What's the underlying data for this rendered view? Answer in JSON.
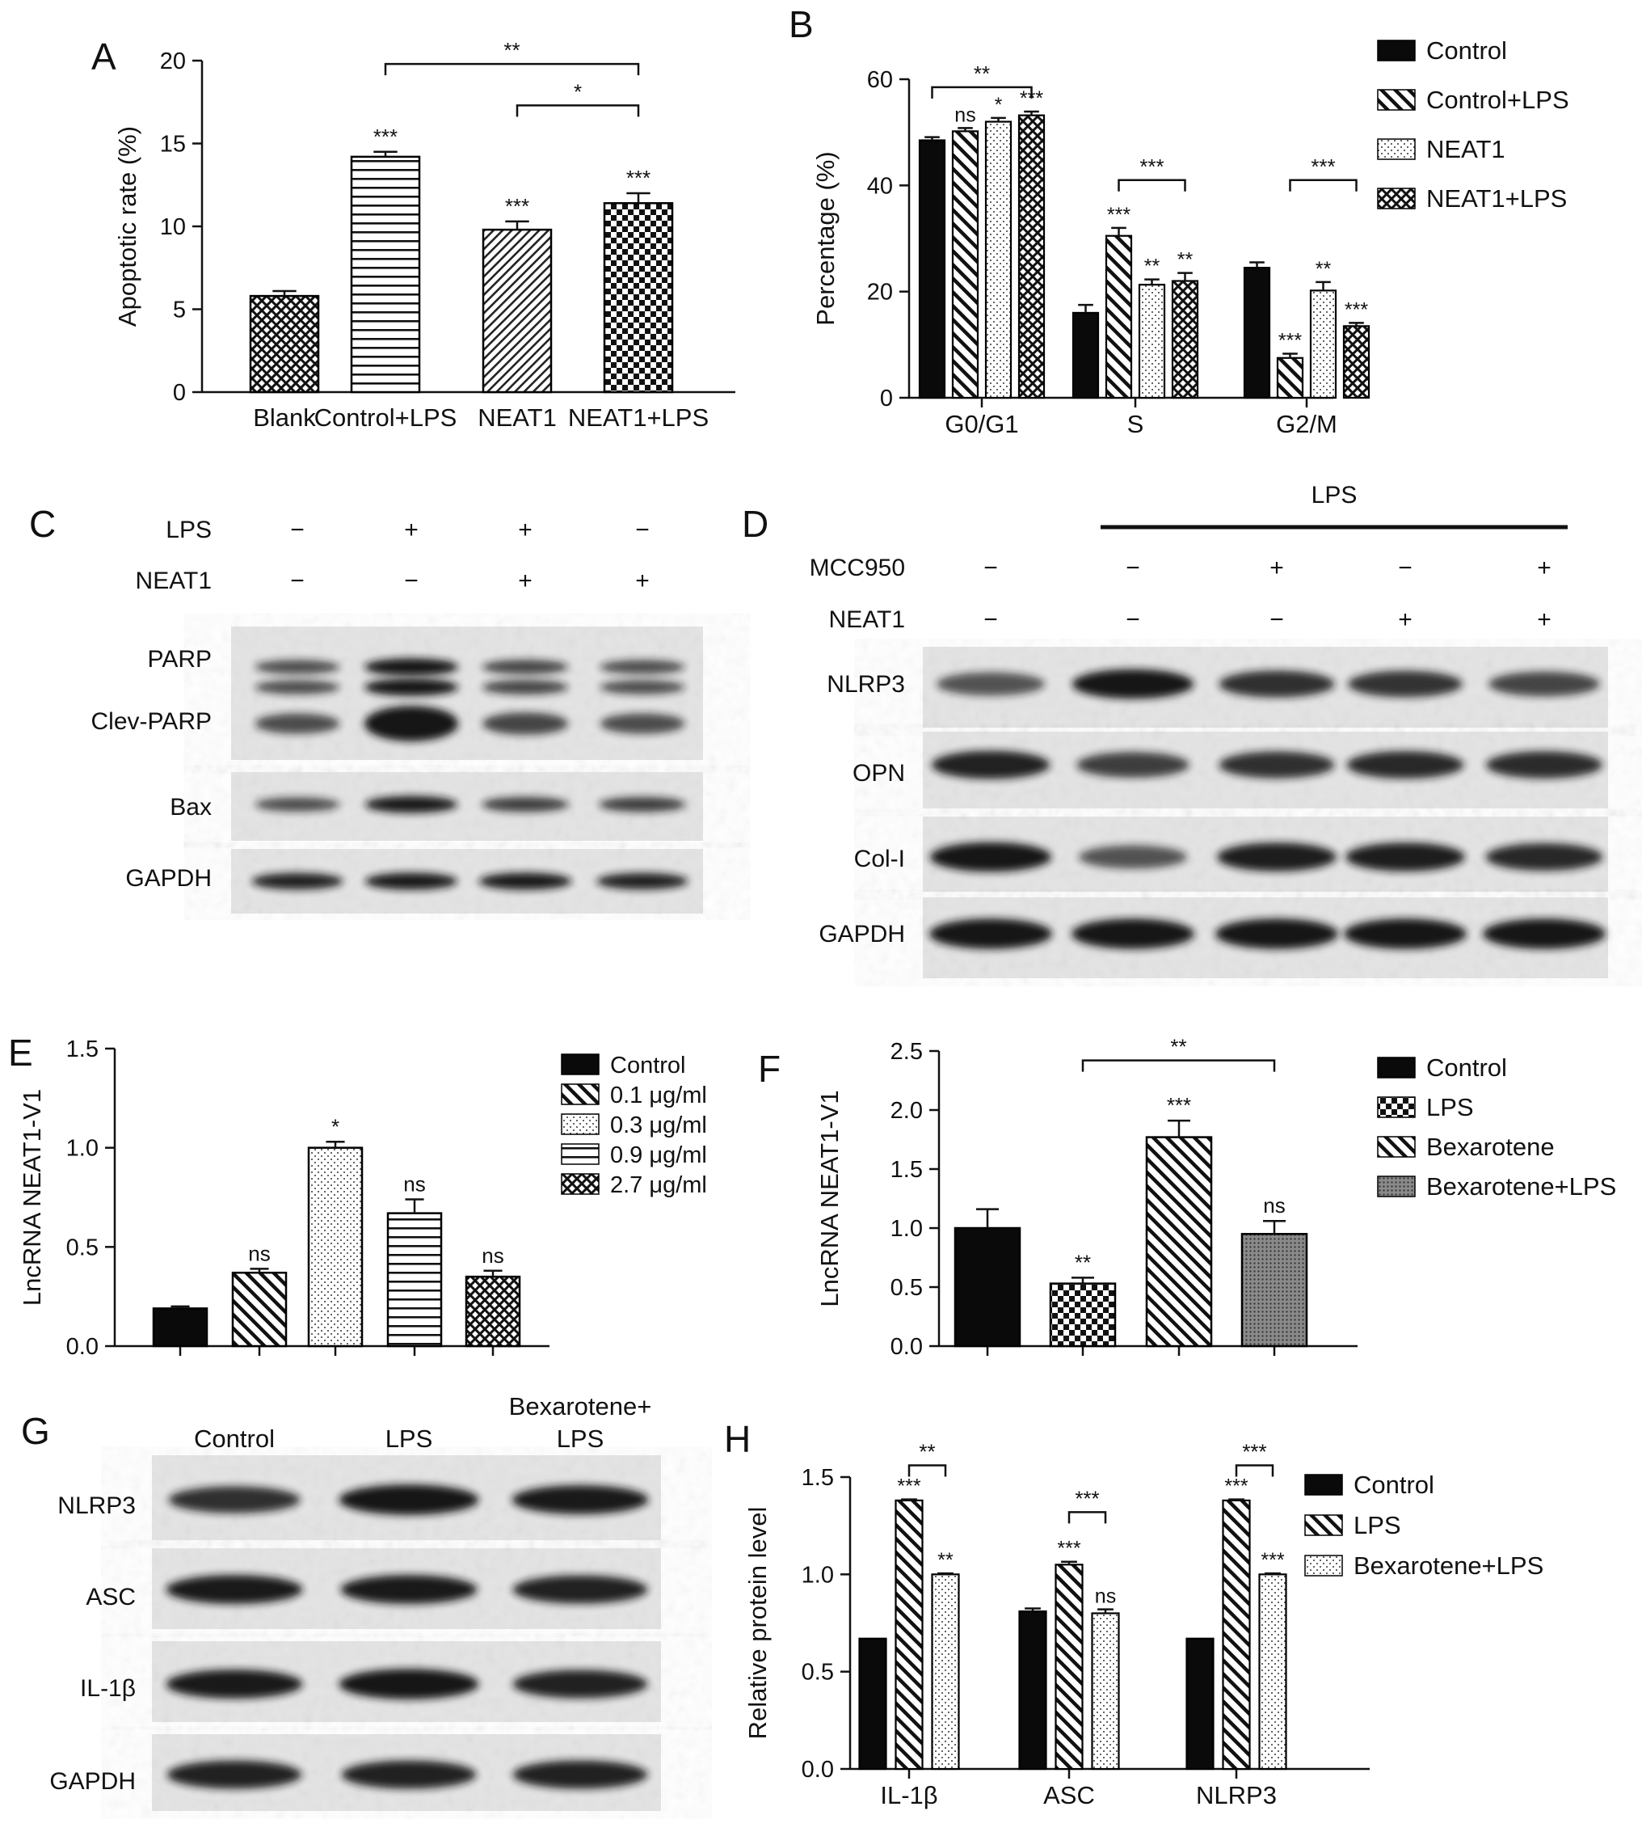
{
  "figure": {
    "panel_letters": {
      "A": "A",
      "B": "B",
      "C": "C",
      "D": "D",
      "E": "E",
      "F": "F",
      "G": "G",
      "H": "H"
    },
    "colors": {
      "ink": "#111111",
      "blot_background": "#e2e2e2",
      "band": "#1a1a1a",
      "bar_outline": "#000000"
    },
    "patterns_note_names": [
      "solid-black",
      "diagonal-hatch",
      "dots",
      "crosshatch",
      "horizontal-lines",
      "checker",
      "fine-diagonal",
      "grey-dots"
    ]
  },
  "chart_data": [
    {
      "panel": "A",
      "type": "bar",
      "ylabel": "Apoptotic rate (%)",
      "xlabel": "",
      "ylim": [
        0,
        20
      ],
      "yticks": [
        0,
        5,
        10,
        15,
        20
      ],
      "categories": [
        "Blank",
        "Control+LPS",
        "NEAT1",
        "NEAT1+LPS"
      ],
      "values": [
        5.8,
        14.2,
        9.8,
        11.4
      ],
      "errors": [
        0.3,
        0.3,
        0.5,
        0.6
      ],
      "fills": [
        "crosshatch",
        "horizontal-lines",
        "fine-diagonal",
        "checker"
      ],
      "annotations": [
        "",
        "***",
        "***",
        "***"
      ],
      "brackets": [
        {
          "from": 1,
          "to": 3,
          "label": "**",
          "y": 19.8
        },
        {
          "from": 2,
          "to": 3,
          "label": "*",
          "y": 17.3
        }
      ]
    },
    {
      "panel": "B",
      "type": "bar",
      "ylabel": "Percentage (%)",
      "xlabel": "",
      "ylim": [
        0,
        60
      ],
      "yticks": [
        0,
        20,
        40,
        60
      ],
      "categories": [
        "G0/G1",
        "S",
        "G2/M"
      ],
      "series": [
        {
          "name": "Control",
          "values": [
            48.5,
            16,
            24.5
          ],
          "errors": [
            0.6,
            1.5,
            1.0
          ],
          "fill": "solid-black",
          "annotations": [
            "",
            "",
            ""
          ]
        },
        {
          "name": "Control+LPS",
          "values": [
            50.2,
            30.5,
            7.5
          ],
          "errors": [
            0.6,
            1.5,
            0.8
          ],
          "fill": "diagonal-hatch",
          "annotations": [
            "ns",
            "***",
            "***"
          ]
        },
        {
          "name": "NEAT1",
          "values": [
            52,
            21.3,
            20.2
          ],
          "errors": [
            0.7,
            1.0,
            1.6
          ],
          "fill": "dots",
          "annotations": [
            "*",
            "**",
            "**"
          ]
        },
        {
          "name": "NEAT1+LPS",
          "values": [
            53.2,
            22,
            13.5
          ],
          "errors": [
            0.7,
            1.5,
            0.6
          ],
          "fill": "crosshatch",
          "annotations": [
            "***",
            "**",
            "***"
          ]
        }
      ],
      "brackets": [
        {
          "category": 0,
          "from_series": 0,
          "to_series": 3,
          "label": "**",
          "y": 58.5
        },
        {
          "category": 1,
          "from_series": 1,
          "to_series": 3,
          "label": "***",
          "y": 41
        },
        {
          "category": 2,
          "from_series": 1,
          "to_series": 3,
          "label": "***",
          "y": 41
        }
      ],
      "legend_position": "right"
    },
    {
      "panel": "E",
      "type": "bar",
      "ylabel": "LncRNA NEAT1-V1",
      "xlabel": "",
      "ylim": [
        0,
        1.5
      ],
      "yticks": [
        "0.0",
        "0.5",
        "1.0",
        "1.5"
      ],
      "categories": [
        "Control",
        "0.1 μg/ml",
        "0.3 μg/ml",
        "0.9 μg/ml",
        "2.7 μg/ml"
      ],
      "values": [
        0.19,
        0.37,
        1.0,
        0.67,
        0.35
      ],
      "errors": [
        0.01,
        0.02,
        0.03,
        0.07,
        0.03
      ],
      "fills": [
        "solid-black",
        "diagonal-hatch",
        "dots",
        "horizontal-lines",
        "crosshatch"
      ],
      "annotations": [
        "",
        "ns",
        "*",
        "ns",
        "ns"
      ],
      "legend_position": "right"
    },
    {
      "panel": "F",
      "type": "bar",
      "ylabel": "LncRNA NEAT1-V1",
      "xlabel": "",
      "ylim": [
        0,
        2.5
      ],
      "yticks": [
        "0.0",
        "0.5",
        "1.0",
        "1.5",
        "2.0",
        "2.5"
      ],
      "categories": [
        "Control",
        "LPS",
        "Bexarotene",
        "Bexarotene+LPS"
      ],
      "values": [
        1.0,
        0.53,
        1.77,
        0.95
      ],
      "errors": [
        0.16,
        0.05,
        0.14,
        0.11
      ],
      "fills": [
        "solid-black",
        "checker",
        "diagonal-hatch",
        "grey-dots"
      ],
      "annotations": [
        "",
        "**",
        "***",
        "ns"
      ],
      "brackets": [
        {
          "from": 1,
          "to": 3,
          "label": "**",
          "y": 2.42
        }
      ],
      "legend_position": "right"
    },
    {
      "panel": "H",
      "type": "bar",
      "ylabel": "Relative protein level",
      "xlabel": "",
      "ylim": [
        0,
        1.5
      ],
      "yticks": [
        "0.0",
        "0.5",
        "1.0",
        "1.5"
      ],
      "categories": [
        "IL-1β",
        "ASC",
        "NLRP3"
      ],
      "series": [
        {
          "name": "Control",
          "values": [
            0.67,
            0.81,
            0.67
          ],
          "errors": [
            0,
            0.015,
            0
          ],
          "fill": "solid-black",
          "annotations": [
            "",
            "",
            ""
          ]
        },
        {
          "name": "LPS",
          "values": [
            1.38,
            1.05,
            1.38
          ],
          "errors": [
            0.005,
            0.015,
            0.005
          ],
          "fill": "diagonal-hatch",
          "annotations": [
            "***",
            "***",
            "***"
          ]
        },
        {
          "name": "Bexarotene+LPS",
          "values": [
            1.0,
            0.8,
            1.0
          ],
          "errors": [
            0.005,
            0.02,
            0.005
          ],
          "fill": "dots",
          "annotations": [
            "**",
            "ns",
            "***"
          ]
        }
      ],
      "brackets": [
        {
          "category": 0,
          "from_series": 1,
          "to_series": 2,
          "label": "**",
          "y": 1.56
        },
        {
          "category": 1,
          "from_series": 1,
          "to_series": 2,
          "label": "***",
          "y": 1.32
        },
        {
          "category": 2,
          "from_series": 1,
          "to_series": 2,
          "label": "***",
          "y": 1.56
        }
      ],
      "legend_position": "right"
    },
    {
      "panel": "C",
      "type": "table",
      "rows": [
        {
          "label": "LPS",
          "values": [
            "−",
            "+",
            "+",
            "−"
          ]
        },
        {
          "label": "NEAT1",
          "values": [
            "−",
            "−",
            "+",
            "+"
          ]
        }
      ],
      "blots": [
        {
          "labels": [
            "PARP",
            "Clev-PARP"
          ],
          "intensities": [
            0.55,
            0.95,
            0.6,
            0.55
          ]
        },
        {
          "labels": [
            "Bax"
          ],
          "intensities": [
            0.55,
            0.9,
            0.65,
            0.65
          ]
        },
        {
          "labels": [
            "GAPDH"
          ],
          "intensities": [
            0.85,
            0.9,
            0.9,
            0.85
          ]
        }
      ]
    },
    {
      "panel": "D",
      "type": "table",
      "header": "LPS",
      "rows": [
        {
          "label": "MCC950",
          "values": [
            "−",
            "−",
            "+",
            "−",
            "+"
          ]
        },
        {
          "label": "NEAT1",
          "values": [
            "−",
            "−",
            "−",
            "+",
            "+"
          ]
        }
      ],
      "blots": [
        {
          "labels": [
            "NLRP3"
          ],
          "intensities": [
            0.5,
            0.95,
            0.75,
            0.72,
            0.6
          ]
        },
        {
          "labels": [
            "OPN"
          ],
          "intensities": [
            0.85,
            0.65,
            0.75,
            0.8,
            0.78
          ]
        },
        {
          "labels": [
            "Col-I"
          ],
          "intensities": [
            0.95,
            0.5,
            0.88,
            0.88,
            0.8
          ]
        },
        {
          "labels": [
            "GAPDH"
          ],
          "intensities": [
            1.0,
            1.0,
            1.0,
            1.0,
            1.0
          ]
        }
      ]
    },
    {
      "panel": "G",
      "type": "table",
      "columns": [
        "Control",
        "LPS",
        "Bexarotene+\nLPS"
      ],
      "blots": [
        {
          "labels": [
            "NLRP3"
          ],
          "intensities": [
            0.75,
            1.0,
            0.9
          ]
        },
        {
          "labels": [
            "ASC"
          ],
          "intensities": [
            0.9,
            0.9,
            0.85
          ]
        },
        {
          "labels": [
            "IL-1β"
          ],
          "intensities": [
            0.9,
            1.0,
            0.85
          ]
        },
        {
          "labels": [
            "GAPDH"
          ],
          "intensities": [
            0.85,
            0.85,
            0.85
          ]
        }
      ]
    }
  ]
}
